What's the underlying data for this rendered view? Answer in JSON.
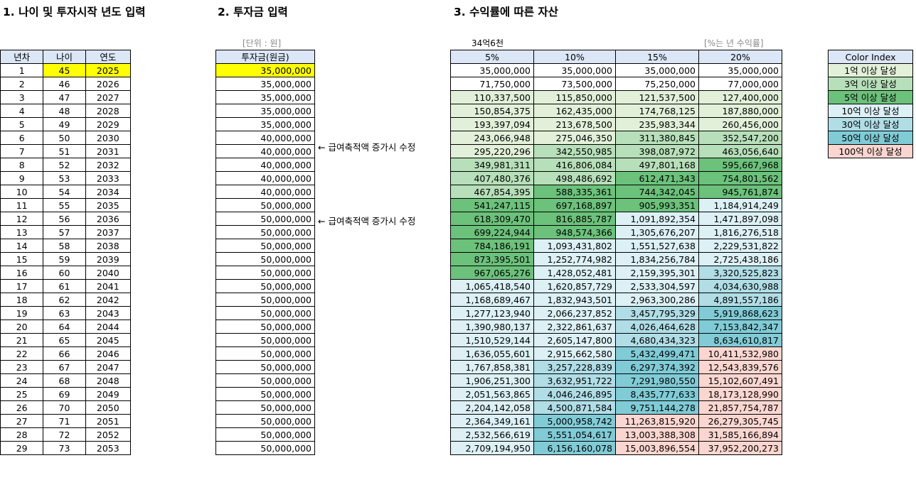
{
  "sections": {
    "s1": "1. 나이 및 투자시작 년도 입력",
    "s2": "2. 투자금 입력",
    "s3": "3. 수익률에 따른 자산"
  },
  "notes": {
    "unit": "[단위 : 원]",
    "top_value": "34억6천",
    "rate_note": "[%는 년 수익률]",
    "salary_note": "← 급여축적액 증가시 수정"
  },
  "table1": {
    "headers": [
      "년차",
      "나이",
      "연도"
    ],
    "rows": [
      [
        "1",
        "45",
        "2025"
      ],
      [
        "2",
        "46",
        "2026"
      ],
      [
        "3",
        "47",
        "2027"
      ],
      [
        "4",
        "48",
        "2028"
      ],
      [
        "5",
        "49",
        "2029"
      ],
      [
        "6",
        "50",
        "2030"
      ],
      [
        "7",
        "51",
        "2031"
      ],
      [
        "8",
        "52",
        "2032"
      ],
      [
        "9",
        "53",
        "2033"
      ],
      [
        "10",
        "54",
        "2034"
      ],
      [
        "11",
        "55",
        "2035"
      ],
      [
        "12",
        "56",
        "2036"
      ],
      [
        "13",
        "57",
        "2037"
      ],
      [
        "14",
        "58",
        "2038"
      ],
      [
        "15",
        "59",
        "2039"
      ],
      [
        "16",
        "60",
        "2040"
      ],
      [
        "17",
        "61",
        "2041"
      ],
      [
        "18",
        "62",
        "2042"
      ],
      [
        "19",
        "63",
        "2043"
      ],
      [
        "20",
        "64",
        "2044"
      ],
      [
        "21",
        "65",
        "2045"
      ],
      [
        "22",
        "66",
        "2046"
      ],
      [
        "23",
        "67",
        "2047"
      ],
      [
        "24",
        "68",
        "2048"
      ],
      [
        "25",
        "69",
        "2049"
      ],
      [
        "26",
        "70",
        "2050"
      ],
      [
        "27",
        "71",
        "2051"
      ],
      [
        "28",
        "72",
        "2052"
      ],
      [
        "29",
        "73",
        "2053"
      ]
    ]
  },
  "table2": {
    "header": "투자금(원금)",
    "rows": [
      "35,000,000",
      "35,000,000",
      "35,000,000",
      "35,000,000",
      "35,000,000",
      "40,000,000",
      "40,000,000",
      "40,000,000",
      "40,000,000",
      "40,000,000",
      "50,000,000",
      "50,000,000",
      "50,000,000",
      "50,000,000",
      "50,000,000",
      "50,000,000",
      "50,000,000",
      "50,000,000",
      "50,000,000",
      "50,000,000",
      "50,000,000",
      "50,000,000",
      "50,000,000",
      "50,000,000",
      "50,000,000",
      "50,000,000",
      "50,000,000",
      "50,000,000",
      "50,000,000"
    ]
  },
  "table3": {
    "headers": [
      "5%",
      "10%",
      "15%",
      "20%"
    ],
    "rows": [
      [
        "35,000,000",
        "35,000,000",
        "35,000,000",
        "35,000,000"
      ],
      [
        "71,750,000",
        "73,500,000",
        "75,250,000",
        "77,000,000"
      ],
      [
        "110,337,500",
        "115,850,000",
        "121,537,500",
        "127,400,000"
      ],
      [
        "150,854,375",
        "162,435,000",
        "174,768,125",
        "187,880,000"
      ],
      [
        "193,397,094",
        "213,678,500",
        "235,983,344",
        "260,456,000"
      ],
      [
        "243,066,948",
        "275,046,350",
        "311,380,845",
        "352,547,200"
      ],
      [
        "295,220,296",
        "342,550,985",
        "398,087,972",
        "463,056,640"
      ],
      [
        "349,981,311",
        "416,806,084",
        "497,801,168",
        "595,667,968"
      ],
      [
        "407,480,376",
        "498,486,692",
        "612,471,343",
        "754,801,562"
      ],
      [
        "467,854,395",
        "588,335,361",
        "744,342,045",
        "945,761,874"
      ],
      [
        "541,247,115",
        "697,168,897",
        "905,993,351",
        "1,184,914,249"
      ],
      [
        "618,309,470",
        "816,885,787",
        "1,091,892,354",
        "1,471,897,098"
      ],
      [
        "699,224,944",
        "948,574,366",
        "1,305,676,207",
        "1,816,276,518"
      ],
      [
        "784,186,191",
        "1,093,431,802",
        "1,551,527,638",
        "2,229,531,822"
      ],
      [
        "873,395,501",
        "1,252,774,982",
        "1,834,256,784",
        "2,725,438,186"
      ],
      [
        "967,065,276",
        "1,428,052,481",
        "2,159,395,301",
        "3,320,525,823"
      ],
      [
        "1,065,418,540",
        "1,620,857,729",
        "2,533,304,597",
        "4,034,630,988"
      ],
      [
        "1,168,689,467",
        "1,832,943,501",
        "2,963,300,286",
        "4,891,557,186"
      ],
      [
        "1,277,123,940",
        "2,066,237,852",
        "3,457,795,329",
        "5,919,868,623"
      ],
      [
        "1,390,980,137",
        "2,322,861,637",
        "4,026,464,628",
        "7,153,842,347"
      ],
      [
        "1,510,529,144",
        "2,605,147,800",
        "4,680,434,323",
        "8,634,610,817"
      ],
      [
        "1,636,055,601",
        "2,915,662,580",
        "5,432,499,471",
        "10,411,532,980"
      ],
      [
        "1,767,858,381",
        "3,257,228,839",
        "6,297,374,392",
        "12,543,839,576"
      ],
      [
        "1,906,251,300",
        "3,632,951,722",
        "7,291,980,550",
        "15,102,607,491"
      ],
      [
        "2,051,563,865",
        "4,046,246,895",
        "8,435,777,633",
        "18,173,128,990"
      ],
      [
        "2,204,142,058",
        "4,500,871,584",
        "9,751,144,278",
        "21,857,754,787"
      ],
      [
        "2,364,349,161",
        "5,000,958,742",
        "11,263,815,920",
        "26,279,305,745"
      ],
      [
        "2,532,566,619",
        "5,551,054,617",
        "13,003,388,308",
        "31,585,166,894"
      ],
      [
        "2,709,194,950",
        "6,156,160,078",
        "15,003,896,554",
        "37,952,200,273"
      ]
    ]
  },
  "color_index": {
    "header": "Color Index",
    "items": [
      {
        "label": "1억 이상 달성",
        "color": "#e2f0d9"
      },
      {
        "label": "3억 이상 달성",
        "color": "#b7dfb9"
      },
      {
        "label": "5억 이상 달성",
        "color": "#6cc17b"
      },
      {
        "label": "10억 이상 달성",
        "color": "#dcf0f5"
      },
      {
        "label": "30억 이상 달성",
        "color": "#b0dde6"
      },
      {
        "label": "50억 이상 달성",
        "color": "#80cbd6"
      },
      {
        "label": "100억 이상 달성",
        "color": "#fbd6d0"
      }
    ],
    "highlight_color": "#ffff00",
    "header_color": "#dbe6f7"
  }
}
